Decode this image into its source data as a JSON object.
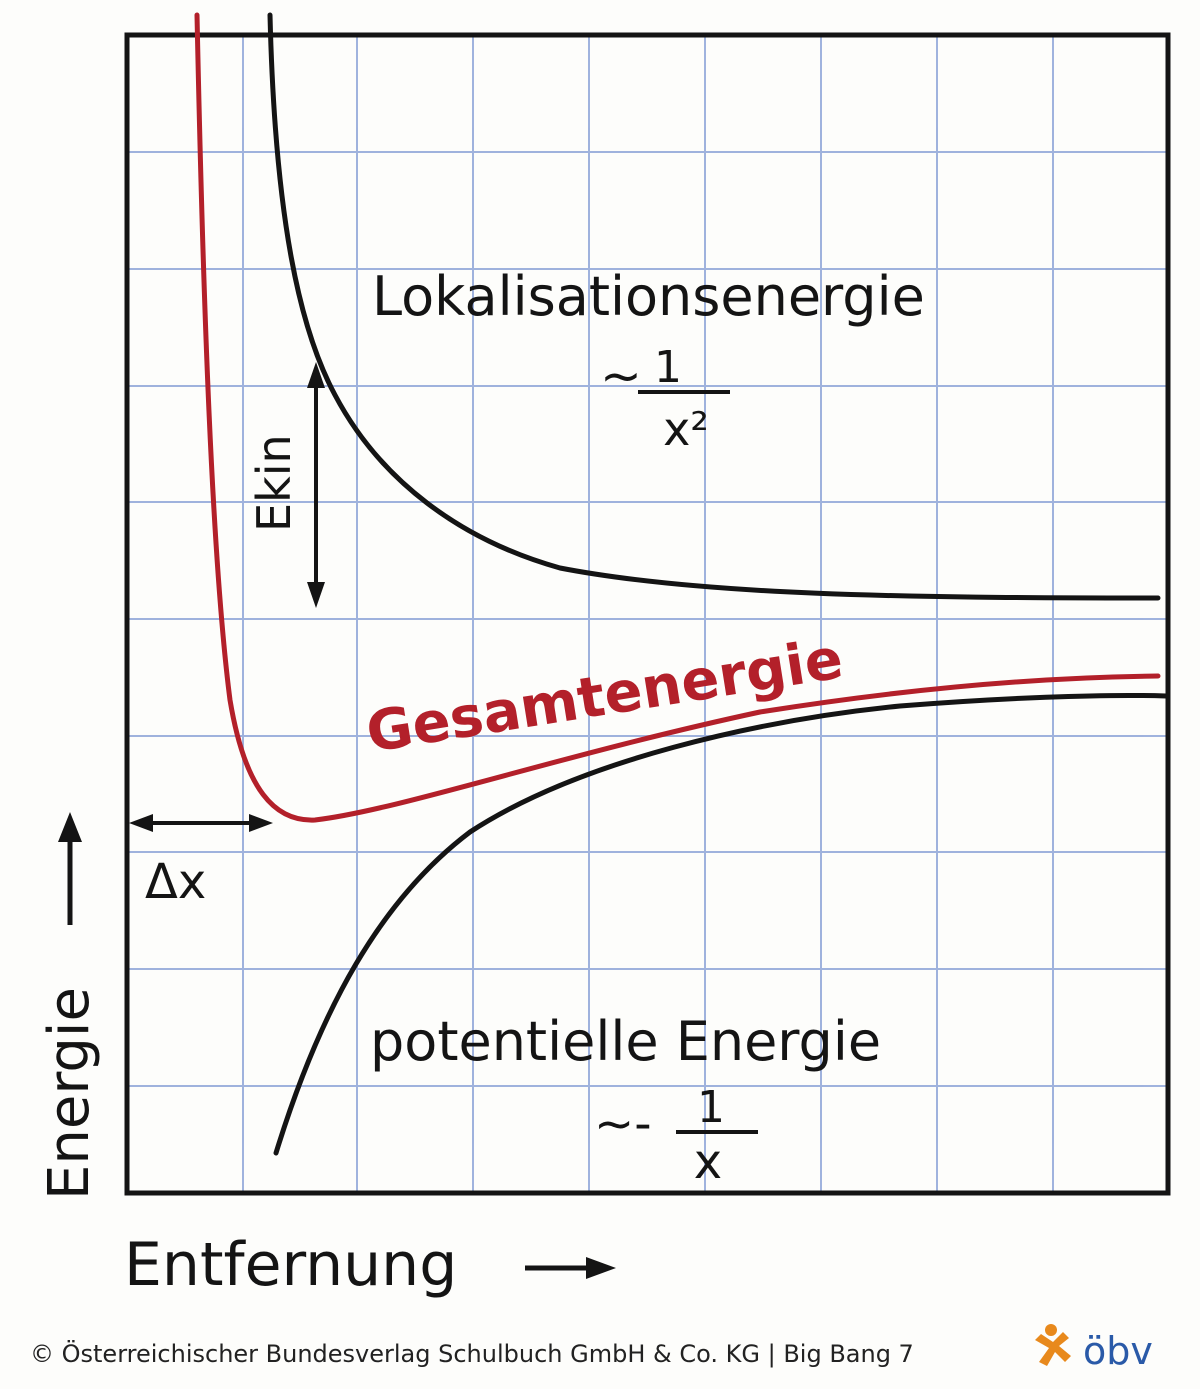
{
  "labels": {
    "localization_energy": "Lokalisationsenergie",
    "localization_prop_prefix": "~",
    "localization_prop_num": "1",
    "localization_prop_den": "x²",
    "total_energy": "Gesamtenergie",
    "potential_energy": "potentielle Energie",
    "potential_prop_prefix": "~-",
    "potential_prop_num": "1",
    "potential_prop_den": "x",
    "ekin": "Ekin",
    "delta_x": "Δx",
    "y_axis": "Energie",
    "x_axis": "Entfernung"
  },
  "colors": {
    "ink": "#141414",
    "total_curve": "#b3202a",
    "grid": "#8fa6d8",
    "logo_orange": "#e8891c",
    "logo_blue": "#2a5aa8"
  },
  "footer": {
    "copyright": "© Österreichischer Bundesverlag Schulbuch GmbH & Co. KG |  Big Bang 7",
    "logo_text": "öbv"
  }
}
